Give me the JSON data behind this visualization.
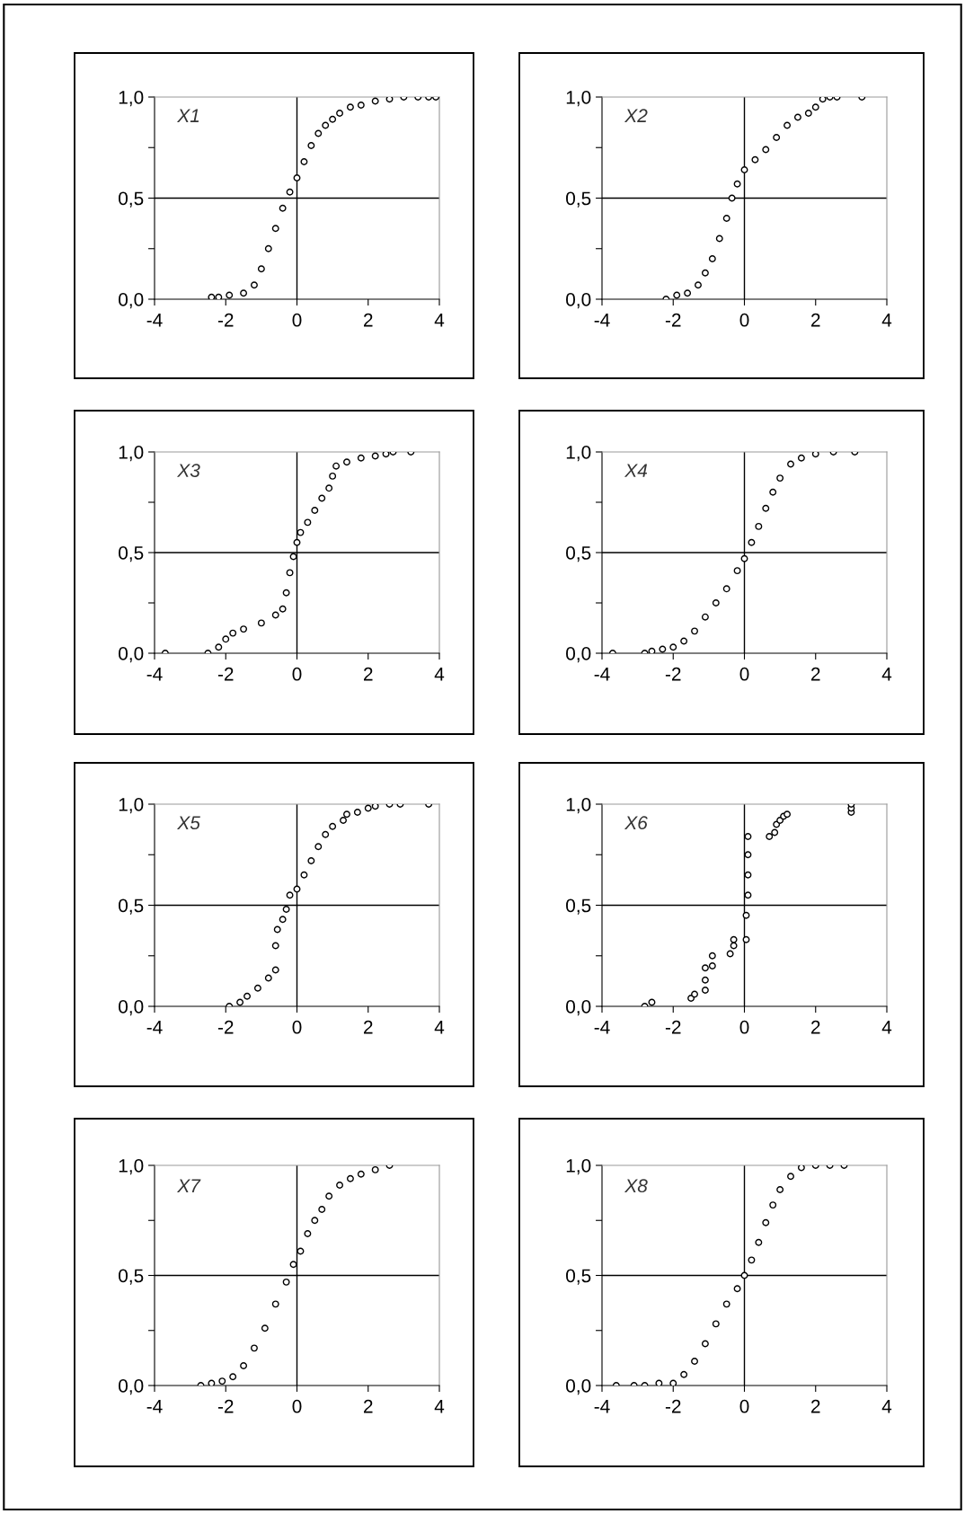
{
  "chart_data": [
    {
      "type": "scatter",
      "title": "X1",
      "marker": "circle",
      "xlim": [
        -4,
        4
      ],
      "ylim": [
        0,
        1
      ],
      "xticks": [
        -4,
        -2,
        0,
        2,
        4
      ],
      "yticks": [
        {
          "value": 0,
          "label": "0,0"
        },
        {
          "value": 0.25,
          "label": null
        },
        {
          "value": 0.5,
          "label": "0,5"
        },
        {
          "value": 0.75,
          "label": null
        },
        {
          "value": 1,
          "label": "1,0"
        }
      ],
      "ref_lines": [
        {
          "axis": "x",
          "value": 0,
          "color": "#000000"
        },
        {
          "axis": "y",
          "value": 0.5,
          "color": "#000000"
        }
      ],
      "series": [
        {
          "color": "#000000",
          "x": [
            -2.4,
            -2.2,
            -1.9,
            -1.5,
            -1.2,
            -1.0,
            -0.8,
            -0.6,
            -0.4,
            -0.2,
            0,
            0.2,
            0.4,
            0.6,
            0.8,
            1.0,
            1.2,
            1.5,
            1.8,
            2.2,
            2.6,
            3.0,
            3.4,
            3.7,
            3.9
          ],
          "values": [
            0.01,
            0.01,
            0.02,
            0.03,
            0.07,
            0.15,
            0.25,
            0.35,
            0.45,
            0.53,
            0.6,
            0.68,
            0.76,
            0.82,
            0.86,
            0.89,
            0.92,
            0.95,
            0.96,
            0.98,
            0.99,
            1.0,
            1.0,
            1.0,
            1.0
          ]
        }
      ]
    },
    {
      "type": "scatter",
      "title": "X2",
      "marker": "circle",
      "xlim": [
        -4,
        4
      ],
      "ylim": [
        0,
        1
      ],
      "xticks": [
        -4,
        -2,
        0,
        2,
        4
      ],
      "yticks": [
        {
          "value": 0,
          "label": "0,0"
        },
        {
          "value": 0.25,
          "label": null
        },
        {
          "value": 0.5,
          "label": "0,5"
        },
        {
          "value": 0.75,
          "label": null
        },
        {
          "value": 1,
          "label": "1,0"
        }
      ],
      "ref_lines": [
        {
          "axis": "x",
          "value": 0,
          "color": "#000000"
        },
        {
          "axis": "y",
          "value": 0.5,
          "color": "#000000"
        }
      ],
      "series": [
        {
          "color": "#000000",
          "x": [
            -2.2,
            -1.9,
            -1.6,
            -1.3,
            -1.1,
            -0.9,
            -0.7,
            -0.5,
            -0.35,
            -0.2,
            0,
            0.3,
            0.6,
            0.9,
            1.2,
            1.5,
            1.8,
            2.0,
            2.2,
            2.4,
            2.6,
            3.3
          ],
          "values": [
            0.0,
            0.02,
            0.03,
            0.07,
            0.13,
            0.2,
            0.3,
            0.4,
            0.5,
            0.57,
            0.64,
            0.69,
            0.74,
            0.8,
            0.86,
            0.9,
            0.92,
            0.95,
            0.99,
            1.0,
            1.0,
            1.0
          ]
        }
      ]
    },
    {
      "type": "scatter",
      "title": "X3",
      "marker": "circle",
      "xlim": [
        -4,
        4
      ],
      "ylim": [
        0,
        1
      ],
      "xticks": [
        -4,
        -2,
        0,
        2,
        4
      ],
      "yticks": [
        {
          "value": 0,
          "label": "0,0"
        },
        {
          "value": 0.25,
          "label": null
        },
        {
          "value": 0.5,
          "label": "0,5"
        },
        {
          "value": 0.75,
          "label": null
        },
        {
          "value": 1,
          "label": "1,0"
        }
      ],
      "ref_lines": [
        {
          "axis": "x",
          "value": 0,
          "color": "#000000"
        },
        {
          "axis": "y",
          "value": 0.5,
          "color": "#000000"
        }
      ],
      "series": [
        {
          "color": "#000000",
          "x": [
            -3.7,
            -2.5,
            -2.2,
            -2.0,
            -1.8,
            -1.5,
            -1.0,
            -0.6,
            -0.4,
            -0.3,
            -0.2,
            -0.1,
            0,
            0.1,
            0.3,
            0.5,
            0.7,
            0.9,
            1.0,
            1.1,
            1.4,
            1.8,
            2.2,
            2.5,
            2.7,
            3.2
          ],
          "values": [
            0.0,
            0.0,
            0.03,
            0.07,
            0.1,
            0.12,
            0.15,
            0.19,
            0.22,
            0.3,
            0.4,
            0.48,
            0.55,
            0.6,
            0.65,
            0.71,
            0.77,
            0.82,
            0.88,
            0.93,
            0.95,
            0.97,
            0.98,
            0.99,
            1.0,
            1.0
          ]
        }
      ]
    },
    {
      "type": "scatter",
      "title": "X4",
      "marker": "circle",
      "xlim": [
        -4,
        4
      ],
      "ylim": [
        0,
        1
      ],
      "xticks": [
        -4,
        -2,
        0,
        2,
        4
      ],
      "yticks": [
        {
          "value": 0,
          "label": "0,0"
        },
        {
          "value": 0.25,
          "label": null
        },
        {
          "value": 0.5,
          "label": "0,5"
        },
        {
          "value": 0.75,
          "label": null
        },
        {
          "value": 1,
          "label": "1,0"
        }
      ],
      "ref_lines": [
        {
          "axis": "x",
          "value": 0,
          "color": "#000000"
        },
        {
          "axis": "y",
          "value": 0.5,
          "color": "#000000"
        }
      ],
      "series": [
        {
          "color": "#000000",
          "x": [
            -3.7,
            -2.8,
            -2.6,
            -2.3,
            -2.0,
            -1.7,
            -1.4,
            -1.1,
            -0.8,
            -0.5,
            -0.2,
            0,
            0.2,
            0.4,
            0.6,
            0.8,
            1.0,
            1.3,
            1.6,
            2.0,
            2.5,
            3.1
          ],
          "values": [
            0.0,
            0.0,
            0.01,
            0.02,
            0.03,
            0.06,
            0.11,
            0.18,
            0.25,
            0.32,
            0.41,
            0.47,
            0.55,
            0.63,
            0.72,
            0.8,
            0.87,
            0.94,
            0.97,
            0.99,
            1.0,
            1.0
          ]
        }
      ]
    },
    {
      "type": "scatter",
      "title": "X5",
      "marker": "circle",
      "xlim": [
        -4,
        4
      ],
      "ylim": [
        0,
        1
      ],
      "xticks": [
        -4,
        -2,
        0,
        2,
        4
      ],
      "yticks": [
        {
          "value": 0,
          "label": "0,0"
        },
        {
          "value": 0.25,
          "label": null
        },
        {
          "value": 0.5,
          "label": "0,5"
        },
        {
          "value": 0.75,
          "label": null
        },
        {
          "value": 1,
          "label": "1,0"
        }
      ],
      "ref_lines": [
        {
          "axis": "x",
          "value": 0,
          "color": "#000000"
        },
        {
          "axis": "y",
          "value": 0.5,
          "color": "#000000"
        }
      ],
      "series": [
        {
          "color": "#000000",
          "x": [
            -1.9,
            -1.6,
            -1.4,
            -1.1,
            -0.8,
            -0.6,
            -0.6,
            -0.55,
            -0.4,
            -0.3,
            -0.2,
            0,
            0.2,
            0.4,
            0.6,
            0.8,
            1.0,
            1.3,
            1.4,
            1.7,
            2.0,
            2.2,
            2.6,
            2.9,
            3.7
          ],
          "values": [
            0.0,
            0.02,
            0.05,
            0.09,
            0.14,
            0.18,
            0.3,
            0.38,
            0.43,
            0.48,
            0.55,
            0.58,
            0.65,
            0.72,
            0.79,
            0.85,
            0.89,
            0.92,
            0.95,
            0.96,
            0.98,
            0.99,
            1.0,
            1.0,
            1.0
          ]
        }
      ]
    },
    {
      "type": "scatter",
      "title": "X6",
      "marker": "circle",
      "xlim": [
        -4,
        4
      ],
      "ylim": [
        0,
        1
      ],
      "xticks": [
        -4,
        -2,
        0,
        2,
        4
      ],
      "yticks": [
        {
          "value": 0,
          "label": "0,0"
        },
        {
          "value": 0.25,
          "label": null
        },
        {
          "value": 0.5,
          "label": "0,5"
        },
        {
          "value": 0.75,
          "label": null
        },
        {
          "value": 1,
          "label": "1,0"
        }
      ],
      "ref_lines": [
        {
          "axis": "x",
          "value": 0,
          "color": "#000000"
        },
        {
          "axis": "y",
          "value": 0.5,
          "color": "#000000"
        }
      ],
      "series": [
        {
          "color": "#000000",
          "x": [
            -2.8,
            -2.6,
            -1.5,
            -1.4,
            -1.1,
            -1.1,
            -1.1,
            -0.9,
            -0.9,
            -0.4,
            -0.3,
            -0.3,
            0.05,
            0.05,
            0.1,
            0.1,
            0.1,
            0.1,
            0.7,
            0.85,
            0.9,
            1.0,
            1.1,
            1.2,
            3.0,
            3.0,
            3.0
          ],
          "values": [
            0.0,
            0.02,
            0.04,
            0.06,
            0.08,
            0.13,
            0.19,
            0.2,
            0.25,
            0.26,
            0.3,
            0.33,
            0.33,
            0.45,
            0.55,
            0.65,
            0.75,
            0.84,
            0.84,
            0.86,
            0.9,
            0.92,
            0.94,
            0.95,
            0.96,
            0.98,
            1.0
          ]
        }
      ]
    },
    {
      "type": "scatter",
      "title": "X7",
      "marker": "circle",
      "xlim": [
        -4,
        4
      ],
      "ylim": [
        0,
        1
      ],
      "xticks": [
        -4,
        -2,
        0,
        2,
        4
      ],
      "yticks": [
        {
          "value": 0,
          "label": "0,0"
        },
        {
          "value": 0.25,
          "label": null
        },
        {
          "value": 0.5,
          "label": "0,5"
        },
        {
          "value": 0.75,
          "label": null
        },
        {
          "value": 1,
          "label": "1,0"
        }
      ],
      "ref_lines": [
        {
          "axis": "x",
          "value": 0,
          "color": "#000000"
        },
        {
          "axis": "y",
          "value": 0.5,
          "color": "#000000"
        }
      ],
      "series": [
        {
          "color": "#000000",
          "x": [
            -2.7,
            -2.4,
            -2.1,
            -1.8,
            -1.5,
            -1.2,
            -0.9,
            -0.6,
            -0.3,
            -0.1,
            0.1,
            0.3,
            0.5,
            0.7,
            0.9,
            1.2,
            1.5,
            1.8,
            2.2,
            2.6
          ],
          "values": [
            0.0,
            0.01,
            0.02,
            0.04,
            0.09,
            0.17,
            0.26,
            0.37,
            0.47,
            0.55,
            0.61,
            0.69,
            0.75,
            0.8,
            0.86,
            0.91,
            0.94,
            0.96,
            0.98,
            1.0
          ]
        }
      ]
    },
    {
      "type": "scatter",
      "title": "X8",
      "marker": "circle",
      "xlim": [
        -4,
        4
      ],
      "ylim": [
        0,
        1
      ],
      "xticks": [
        -4,
        -2,
        0,
        2,
        4
      ],
      "yticks": [
        {
          "value": 0,
          "label": "0,0"
        },
        {
          "value": 0.25,
          "label": null
        },
        {
          "value": 0.5,
          "label": "0,5"
        },
        {
          "value": 0.75,
          "label": null
        },
        {
          "value": 1,
          "label": "1,0"
        }
      ],
      "ref_lines": [
        {
          "axis": "x",
          "value": 0,
          "color": "#000000"
        },
        {
          "axis": "y",
          "value": 0.5,
          "color": "#000000"
        }
      ],
      "series": [
        {
          "color": "#000000",
          "x": [
            -3.6,
            -3.1,
            -2.8,
            -2.4,
            -2.0,
            -1.7,
            -1.4,
            -1.1,
            -0.8,
            -0.5,
            -0.2,
            0,
            0.2,
            0.4,
            0.6,
            0.8,
            1.0,
            1.3,
            1.6,
            2.0,
            2.4,
            2.8
          ],
          "values": [
            0.0,
            0.0,
            0.0,
            0.01,
            0.01,
            0.05,
            0.11,
            0.19,
            0.28,
            0.37,
            0.44,
            0.5,
            0.57,
            0.65,
            0.74,
            0.82,
            0.89,
            0.95,
            0.99,
            1.0,
            1.0,
            1.0
          ]
        }
      ]
    }
  ]
}
